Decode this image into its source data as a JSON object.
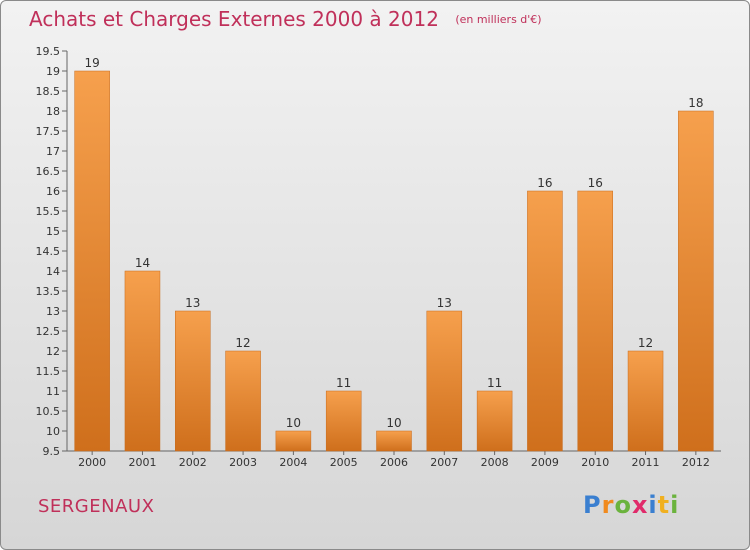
{
  "header": {
    "title": "Achats et Charges Externes 2000 à 2012",
    "unit": "(en milliers d'€)"
  },
  "footer": {
    "commune": "SERGENAUX",
    "logo_text": "Proxiti"
  },
  "colors": {
    "bar_top": "#f6a04d",
    "bar_bottom": "#cf6f1c",
    "title": "#c0305a"
  },
  "chart_data": {
    "type": "bar",
    "categories": [
      "2000",
      "2001",
      "2002",
      "2003",
      "2004",
      "2005",
      "2006",
      "2007",
      "2008",
      "2009",
      "2010",
      "2011",
      "2012"
    ],
    "values": [
      19,
      14,
      13,
      12,
      10,
      11,
      10,
      13,
      11,
      16,
      16,
      12,
      18
    ],
    "title": "Achats et Charges Externes 2000 à 2012",
    "ylabel": "",
    "xlabel": "",
    "ylim": [
      9.5,
      19.5
    ],
    "yticks": [
      9.5,
      10,
      10.5,
      11,
      11.5,
      12,
      12.5,
      13,
      13.5,
      14,
      14.5,
      15,
      15.5,
      16,
      16.5,
      17,
      17.5,
      18,
      18.5,
      19,
      19.5
    ],
    "grid": false,
    "legend": "none"
  }
}
